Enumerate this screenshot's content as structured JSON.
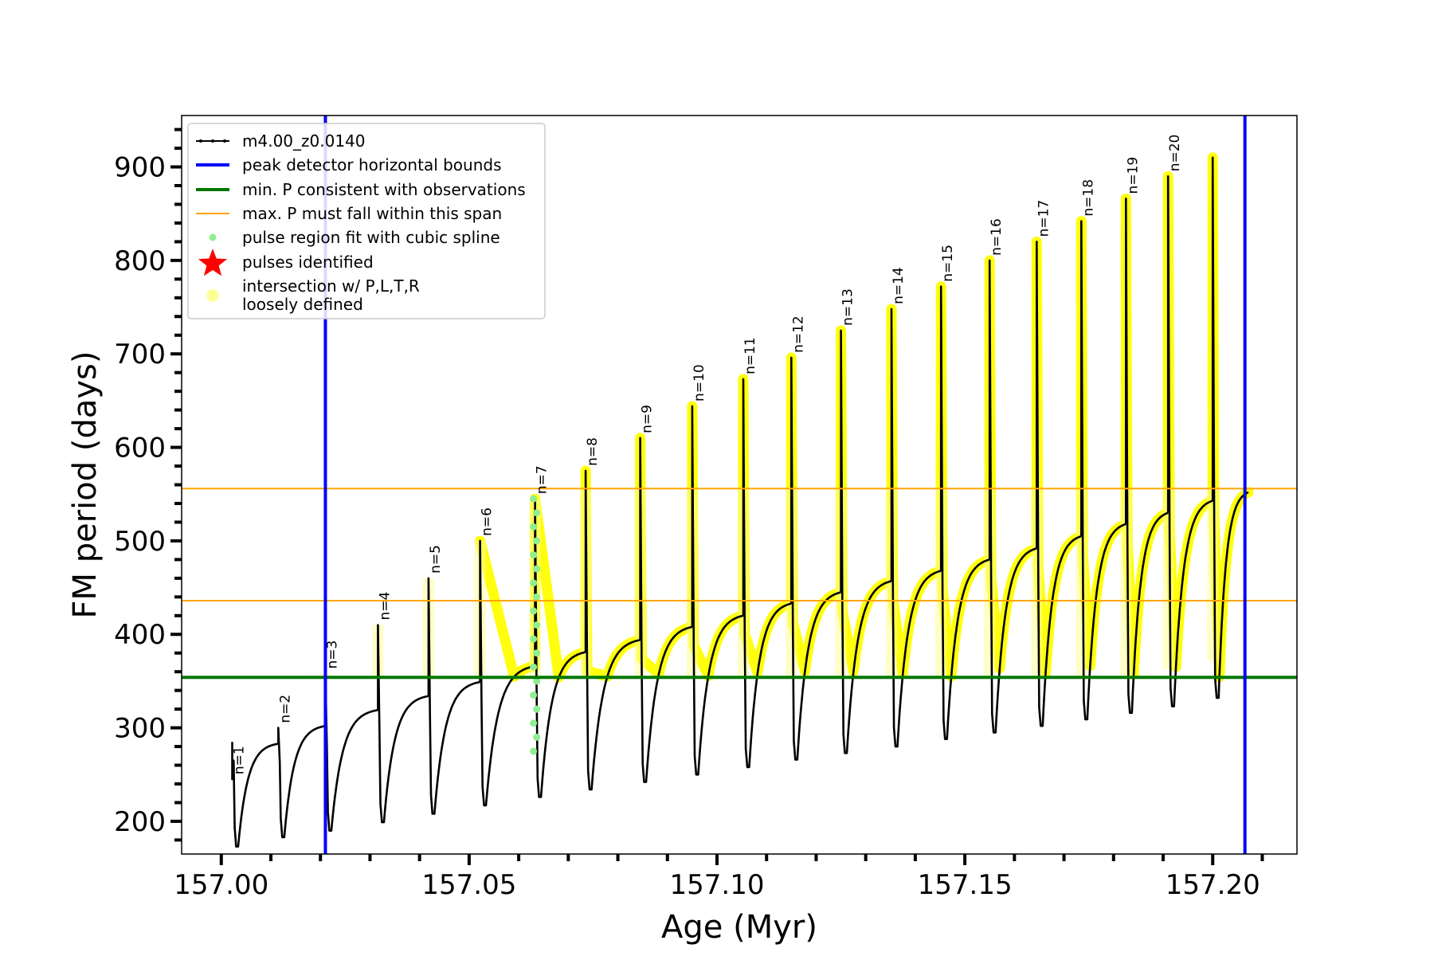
{
  "chart_data": {
    "type": "line",
    "xlabel": "Age (Myr)",
    "ylabel": "FM period (days)",
    "xlim": [
      156.992,
      157.217
    ],
    "ylim": [
      165,
      955
    ],
    "xticks": [
      157.0,
      157.05,
      157.1,
      157.15,
      157.2
    ],
    "xtick_labels": [
      "157.00",
      "157.05",
      "157.10",
      "157.15",
      "157.20"
    ],
    "yticks": [
      200,
      300,
      400,
      500,
      600,
      700,
      800,
      900
    ],
    "ytick_labels": [
      "200",
      "300",
      "400",
      "500",
      "600",
      "700",
      "800",
      "900"
    ],
    "minor_ytick_step": 20,
    "minor_xtick_step": 0.01,
    "grid": false,
    "legend_position": "top-left",
    "hlines": {
      "min_period": 354,
      "max_period_span": [
        436,
        556
      ]
    },
    "vlines": [
      157.021,
      157.2065
    ],
    "series": [
      {
        "name": "m4.00_z0.0140",
        "color": "#000000",
        "pulses": [
          {
            "label": "n=1",
            "x": 157.0022,
            "min": 173,
            "pre_peak": 285,
            "peak": 245
          },
          {
            "label": "n=2",
            "x": 157.0115,
            "min": 183,
            "pre_peak": 283,
            "peak": 300
          },
          {
            "label": "n=3",
            "x": 157.021,
            "min": 190,
            "pre_peak": 302,
            "peak": 358
          },
          {
            "label": "n=4",
            "x": 157.0316,
            "min": 199,
            "pre_peak": 319,
            "peak": 410
          },
          {
            "label": "n=5",
            "x": 157.0418,
            "min": 208,
            "pre_peak": 334,
            "peak": 460
          },
          {
            "label": "n=6",
            "x": 157.0522,
            "min": 217,
            "pre_peak": 349,
            "peak": 500
          },
          {
            "label": "n=7",
            "x": 157.0633,
            "min": 226,
            "pre_peak": 366,
            "peak": 545
          },
          {
            "label": "n=8",
            "x": 157.0735,
            "min": 234,
            "pre_peak": 381,
            "peak": 575
          },
          {
            "label": "n=9",
            "x": 157.0845,
            "min": 242,
            "pre_peak": 394,
            "peak": 610
          },
          {
            "label": "n=10",
            "x": 157.095,
            "min": 250,
            "pre_peak": 408,
            "peak": 644
          },
          {
            "label": "n=11",
            "x": 157.1053,
            "min": 258,
            "pre_peak": 420,
            "peak": 673
          },
          {
            "label": "n=12",
            "x": 157.115,
            "min": 266,
            "pre_peak": 433,
            "peak": 696
          },
          {
            "label": "n=13",
            "x": 157.125,
            "min": 273,
            "pre_peak": 445,
            "peak": 725
          },
          {
            "label": "n=14",
            "x": 157.1352,
            "min": 280,
            "pre_peak": 457,
            "peak": 748
          },
          {
            "label": "n=15",
            "x": 157.1452,
            "min": 288,
            "pre_peak": 468,
            "peak": 772
          },
          {
            "label": "n=16",
            "x": 157.155,
            "min": 295,
            "pre_peak": 480,
            "peak": 800
          },
          {
            "label": "n=17",
            "x": 157.1645,
            "min": 302,
            "pre_peak": 492,
            "peak": 820
          },
          {
            "label": "n=18",
            "x": 157.1735,
            "min": 309,
            "pre_peak": 505,
            "peak": 842
          },
          {
            "label": "n=19",
            "x": 157.1825,
            "min": 316,
            "pre_peak": 518,
            "peak": 866
          },
          {
            "label": "n=20",
            "x": 157.191,
            "min": 323,
            "pre_peak": 530,
            "peak": 890
          },
          {
            "label": "",
            "x": 157.2,
            "min": 332,
            "pre_peak": 543,
            "peak": 910
          }
        ],
        "end_x": 157.2072,
        "end_y": 552
      }
    ],
    "legend": [
      {
        "label": "m4.00_z0.0140",
        "color": "#000000",
        "style": "line-dot"
      },
      {
        "label": "peak detector horizontal bounds",
        "color": "#0000ff",
        "style": "thick-line"
      },
      {
        "label": "min. P consistent with observations",
        "color": "#007700",
        "style": "thick-line"
      },
      {
        "label": "max. P must fall within this span",
        "color": "#ffa500",
        "style": "thin-line"
      },
      {
        "label": "pulse region fit with cubic spline",
        "color": "#90ee90",
        "style": "dot"
      },
      {
        "label": "pulses identified",
        "color": "#ff0000",
        "style": "star"
      },
      {
        "label": "intersection w/ P,L,T,R",
        "label2": "loosely defined",
        "color": "#ffff99",
        "style": "big-dot"
      }
    ],
    "colors": {
      "min_line": "#007700",
      "span_line": "#ffa500",
      "bound_line": "#0000ff",
      "spline": "#90ee90",
      "highlight": "#ffff00"
    }
  }
}
